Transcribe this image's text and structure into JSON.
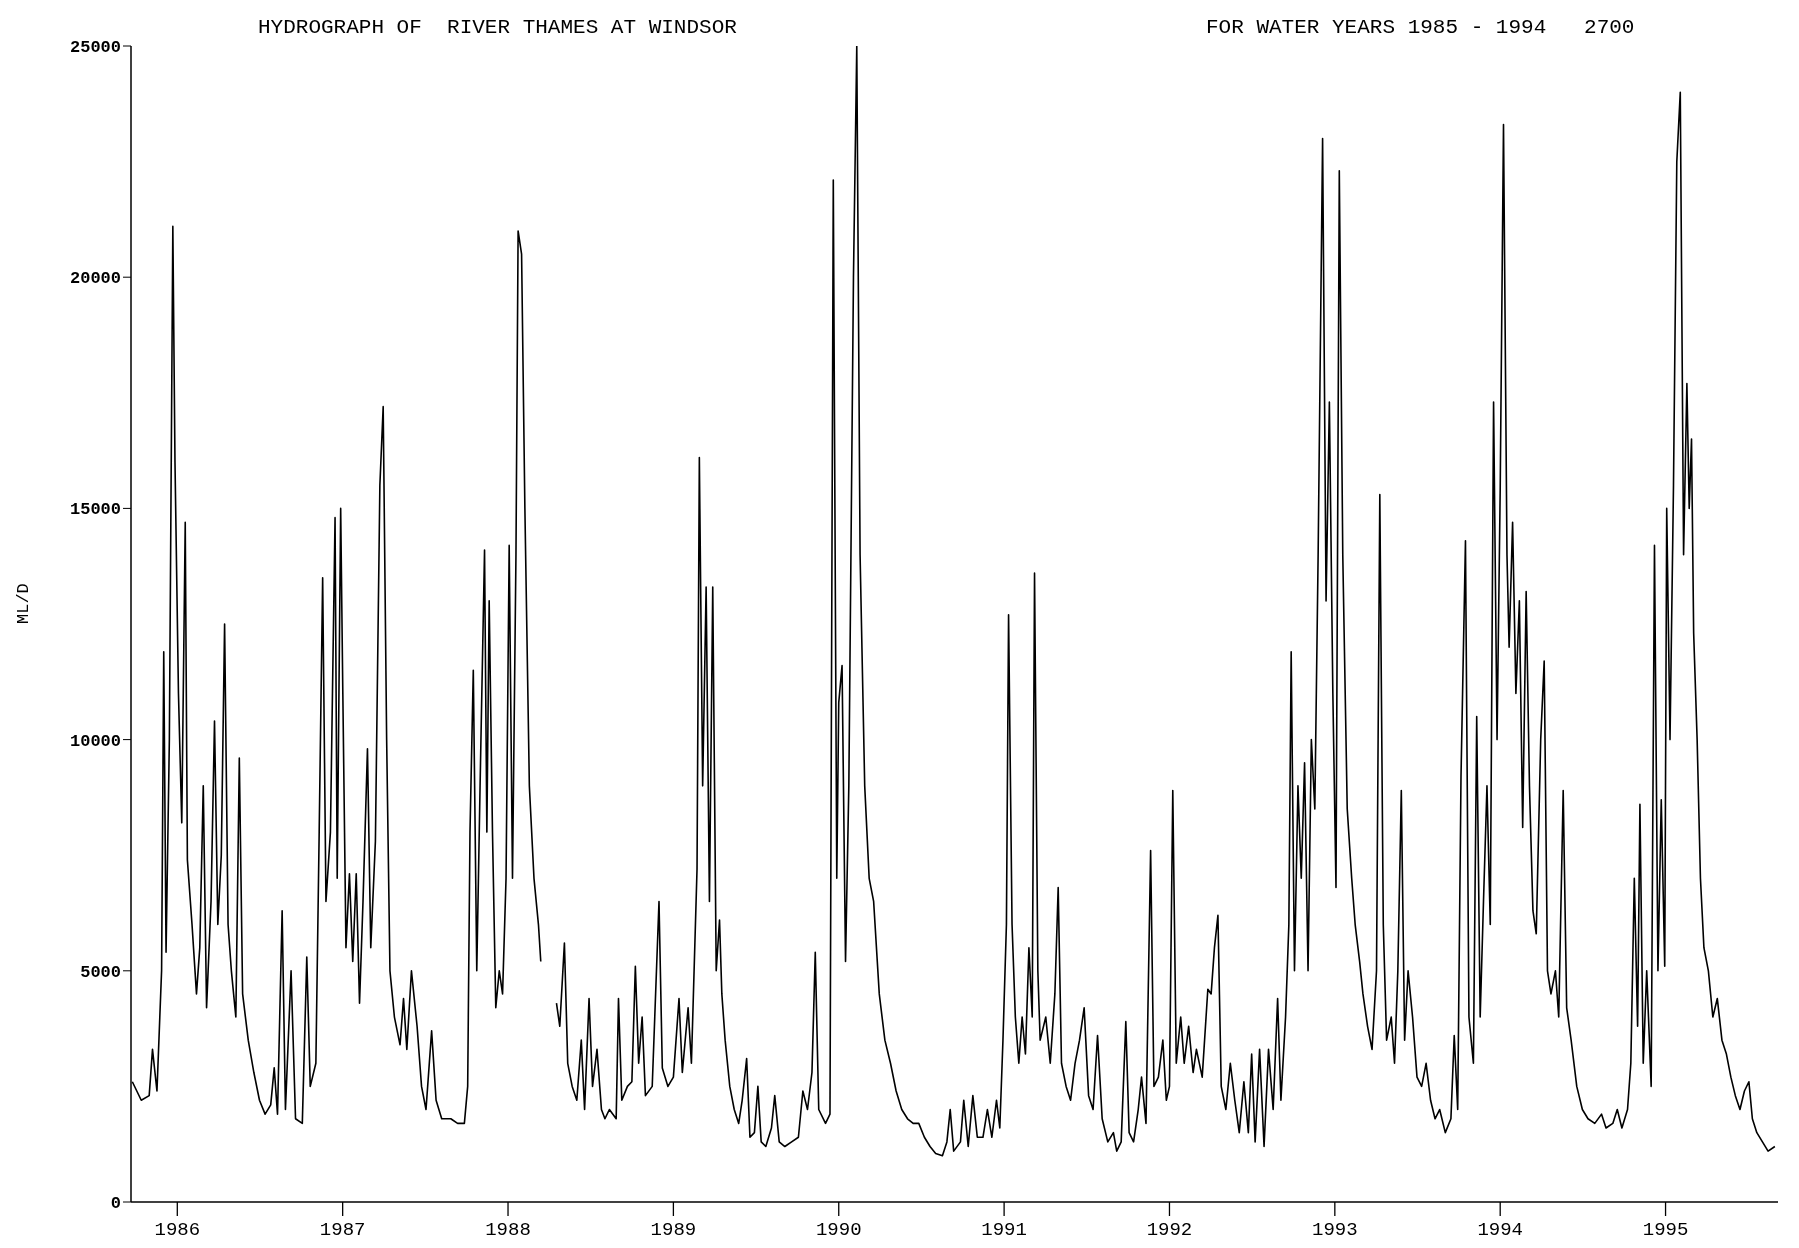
{
  "chart_data": {
    "type": "line",
    "title": "HYDROGRAPH OF  RIVER THAMES AT WINDSOR",
    "subtitle": "FOR WATER YEARS 1985 - 1994   2700",
    "ylabel": "ML/D",
    "color": "#000000",
    "marker": "none",
    "line_style": "solid",
    "grid": false,
    "legend": false,
    "xlim": [
      1985.72,
      1995.68
    ],
    "xticks": [
      1986,
      1987,
      1988,
      1989,
      1990,
      1991,
      1992,
      1993,
      1994,
      1995
    ],
    "ylim": [
      0,
      25000
    ],
    "yticks": [
      0,
      5000,
      10000,
      15000,
      20000,
      25000
    ],
    "x": [
      1985.728,
      1985.782,
      1985.83,
      1985.85,
      1985.877,
      1985.905,
      1985.918,
      1985.932,
      1985.952,
      1985.973,
      1985.986,
      1986.007,
      1986.027,
      1986.048,
      1986.061,
      1986.089,
      1986.116,
      1986.136,
      1986.157,
      1986.177,
      1986.204,
      1986.225,
      1986.245,
      1986.266,
      1986.286,
      1986.307,
      1986.327,
      1986.354,
      1986.375,
      1986.395,
      1986.429,
      1986.463,
      1986.497,
      1986.531,
      1986.565,
      1986.586,
      1986.606,
      1986.634,
      1986.654,
      1986.688,
      1986.715,
      1986.756,
      1986.783,
      1986.804,
      1986.838,
      1986.858,
      1986.879,
      1986.899,
      1986.926,
      1986.954,
      1986.967,
      1986.988,
      1987.001,
      1987.02,
      1987.041,
      1987.061,
      1987.082,
      1987.102,
      1987.123,
      1987.15,
      1987.17,
      1987.198,
      1987.225,
      1987.245,
      1987.266,
      1987.286,
      1987.313,
      1987.347,
      1987.368,
      1987.388,
      1987.416,
      1987.45,
      1987.477,
      1987.504,
      1987.538,
      1987.565,
      1987.599,
      1987.654,
      1987.695,
      1987.736,
      1987.756,
      1987.77,
      1987.79,
      1987.811,
      1987.831,
      1987.858,
      1987.872,
      1987.886,
      1987.906,
      1987.926,
      1987.947,
      1987.967,
      1987.988,
      1988.007,
      1988.027,
      1988.048,
      1988.061,
      1988.082,
      1988.102,
      1988.129,
      1988.157,
      1988.184,
      1988.198,
      1988.252,
      1988.293,
      1988.313,
      1988.341,
      1988.361,
      1988.388,
      1988.416,
      1988.443,
      1988.463,
      1988.49,
      1988.511,
      1988.538,
      1988.565,
      1988.586,
      1988.613,
      1988.654,
      1988.668,
      1988.688,
      1988.722,
      1988.749,
      1988.77,
      1988.79,
      1988.811,
      1988.831,
      1988.872,
      1988.913,
      1988.933,
      1988.967,
      1989.0,
      1989.034,
      1989.054,
      1989.089,
      1989.109,
      1989.143,
      1989.157,
      1989.177,
      1989.198,
      1989.218,
      1989.238,
      1989.259,
      1989.279,
      1989.293,
      1989.313,
      1989.341,
      1989.368,
      1989.395,
      1989.416,
      1989.443,
      1989.463,
      1989.49,
      1989.511,
      1989.531,
      1989.559,
      1989.593,
      1989.613,
      1989.64,
      1989.674,
      1989.715,
      1989.756,
      1989.783,
      1989.811,
      1989.838,
      1989.858,
      1989.879,
      1989.92,
      1989.947,
      1989.967,
      1989.988,
      1990.0,
      1990.02,
      1990.041,
      1990.061,
      1990.089,
      1990.109,
      1990.129,
      1990.157,
      1990.184,
      1990.211,
      1990.245,
      1990.279,
      1990.313,
      1990.347,
      1990.381,
      1990.416,
      1990.45,
      1990.484,
      1990.518,
      1990.552,
      1990.586,
      1990.627,
      1990.654,
      1990.674,
      1990.695,
      1990.736,
      1990.756,
      1990.783,
      1990.811,
      1990.838,
      1990.872,
      1990.899,
      1990.926,
      1990.954,
      1990.974,
      1990.993,
      1991.014,
      1991.027,
      1991.048,
      1991.068,
      1991.089,
      1991.109,
      1991.129,
      1991.15,
      1991.17,
      1991.184,
      1991.204,
      1991.218,
      1991.252,
      1991.279,
      1991.307,
      1991.327,
      1991.347,
      1991.375,
      1991.402,
      1991.429,
      1991.456,
      1991.484,
      1991.511,
      1991.538,
      1991.565,
      1991.593,
      1991.627,
      1991.661,
      1991.681,
      1991.708,
      1991.736,
      1991.756,
      1991.783,
      1991.811,
      1991.831,
      1991.858,
      1991.886,
      1991.906,
      1991.933,
      1991.96,
      1991.981,
      1992.0,
      1992.02,
      1992.041,
      1992.068,
      1992.089,
      1992.116,
      1992.143,
      1992.163,
      1992.198,
      1992.232,
      1992.252,
      1992.272,
      1992.293,
      1992.313,
      1992.341,
      1992.368,
      1992.395,
      1992.422,
      1992.45,
      1992.477,
      1992.497,
      1992.518,
      1992.545,
      1992.572,
      1992.599,
      1992.627,
      1992.654,
      1992.674,
      1992.702,
      1992.722,
      1992.736,
      1992.756,
      1992.777,
      1992.797,
      1992.817,
      1992.838,
      1992.858,
      1992.879,
      1992.899,
      1992.926,
      1992.947,
      1992.967,
      1992.988,
      1993.007,
      1993.027,
      1993.048,
      1993.075,
      1993.102,
      1993.123,
      1993.15,
      1993.17,
      1993.198,
      1993.225,
      1993.252,
      1993.272,
      1993.293,
      1993.313,
      1993.341,
      1993.361,
      1993.381,
      1993.402,
      1993.422,
      1993.443,
      1993.47,
      1993.497,
      1993.525,
      1993.552,
      1993.579,
      1993.606,
      1993.634,
      1993.668,
      1993.702,
      1993.722,
      1993.743,
      1993.763,
      1993.79,
      1993.811,
      1993.838,
      1993.858,
      1993.879,
      1993.899,
      1993.92,
      1993.94,
      1993.96,
      1993.981,
      1994.0,
      1994.02,
      1994.041,
      1994.054,
      1994.075,
      1994.095,
      1994.116,
      1994.136,
      1994.157,
      1994.177,
      1994.198,
      1994.218,
      1994.245,
      1994.266,
      1994.286,
      1994.307,
      1994.334,
      1994.354,
      1994.381,
      1994.402,
      1994.429,
      1994.463,
      1994.497,
      1994.531,
      1994.572,
      1994.613,
      1994.64,
      1994.681,
      1994.708,
      1994.736,
      1994.77,
      1994.79,
      1994.811,
      1994.831,
      1994.845,
      1994.865,
      1994.886,
      1994.913,
      1994.933,
      1994.954,
      1994.974,
      1994.995,
      1995.007,
      1995.027,
      1995.048,
      1995.068,
      1995.089,
      1995.109,
      1995.129,
      1995.143,
      1995.157,
      1995.17,
      1995.191,
      1995.211,
      1995.232,
      1995.259,
      1995.286,
      1995.313,
      1995.341,
      1995.368,
      1995.395,
      1995.422,
      1995.45,
      1995.477,
      1995.504,
      1995.525,
      1995.552,
      1995.586,
      1995.62,
      1995.661
    ],
    "values": [
      2600,
      2200,
      2300,
      3300,
      2400,
      5000,
      11900,
      5400,
      10000,
      21100,
      16000,
      11000,
      8200,
      14700,
      7400,
      6000,
      4500,
      5500,
      9000,
      4200,
      6500,
      10400,
      6000,
      7500,
      12500,
      6000,
      5000,
      4000,
      9600,
      4500,
      3500,
      2800,
      2200,
      1900,
      2100,
      2900,
      1900,
      6300,
      2000,
      5000,
      1800,
      1700,
      5300,
      2500,
      3000,
      8000,
      13500,
      6500,
      8000,
      14800,
      7000,
      15000,
      11000,
      5500,
      7100,
      5200,
      7100,
      4300,
      6500,
      9800,
      5500,
      7800,
      15500,
      17200,
      10000,
      5000,
      4000,
      3400,
      4400,
      3300,
      5000,
      3800,
      2500,
      2000,
      3700,
      2200,
      1800,
      1800,
      1700,
      1700,
      2500,
      8000,
      11500,
      5000,
      9000,
      14100,
      8000,
      13000,
      8000,
      4200,
      5000,
      4500,
      7000,
      14200,
      7000,
      14000,
      21000,
      20500,
      15000,
      9000,
      7000,
      6000,
      5200,
      null,
      4300,
      3800,
      5600,
      3000,
      2500,
      2200,
      3500,
      2000,
      4400,
      2500,
      3300,
      2000,
      1800,
      2000,
      1800,
      4400,
      2200,
      2500,
      2600,
      5100,
      3000,
      4000,
      2300,
      2500,
      6500,
      2900,
      2500,
      2700,
      4400,
      2800,
      4200,
      3000,
      7200,
      16100,
      9000,
      13300,
      6500,
      13300,
      5000,
      6100,
      4500,
      3500,
      2500,
      2000,
      1700,
      2200,
      3100,
      1400,
      1500,
      2500,
      1300,
      1200,
      1600,
      2300,
      1300,
      1200,
      1300,
      1400,
      2400,
      2000,
      2800,
      5400,
      2000,
      1700,
      1900,
      22100,
      7000,
      10800,
      11600,
      5200,
      9000,
      20000,
      25000,
      14000,
      9000,
      7000,
      6500,
      4500,
      3500,
      3000,
      2400,
      2000,
      1800,
      1700,
      1700,
      1400,
      1200,
      1050,
      1000,
      1300,
      2000,
      1100,
      1300,
      2200,
      1200,
      2300,
      1400,
      1400,
      2000,
      1400,
      2200,
      1600,
      3500,
      6000,
      12700,
      6000,
      4000,
      3000,
      4000,
      3200,
      5500,
      4000,
      13600,
      5000,
      3500,
      4000,
      3000,
      4500,
      6800,
      3000,
      2500,
      2200,
      3000,
      3500,
      4200,
      2300,
      2000,
      3600,
      1800,
      1300,
      1500,
      1100,
      1300,
      3900,
      1500,
      1300,
      2000,
      2700,
      1700,
      7600,
      2500,
      2700,
      3500,
      2200,
      2500,
      8900,
      3000,
      4000,
      3000,
      3800,
      2800,
      3300,
      2700,
      4600,
      4500,
      5500,
      6200,
      2500,
      2000,
      3000,
      2200,
      1500,
      2600,
      1500,
      3200,
      1300,
      3300,
      1200,
      3300,
      2000,
      4400,
      2200,
      4000,
      6000,
      11900,
      5000,
      9000,
      7000,
      9500,
      5000,
      10000,
      8500,
      14000,
      23000,
      13000,
      17300,
      11000,
      6800,
      22300,
      14000,
      8500,
      7000,
      6000,
      5200,
      4500,
      3800,
      3300,
      5000,
      15300,
      6000,
      3500,
      4000,
      3000,
      5000,
      8900,
      3500,
      5000,
      4000,
      2700,
      2500,
      3000,
      2200,
      1800,
      2000,
      1500,
      1800,
      3600,
      2000,
      9200,
      14300,
      4000,
      3000,
      10500,
      4000,
      6500,
      9000,
      6000,
      17300,
      10000,
      15400,
      23300,
      14000,
      12000,
      14700,
      11000,
      13000,
      8100,
      13200,
      9000,
      6300,
      5800,
      10000,
      11700,
      5000,
      4500,
      5000,
      4000,
      8900,
      4200,
      3500,
      2500,
      2000,
      1800,
      1700,
      1900,
      1600,
      1700,
      2000,
      1600,
      2000,
      3000,
      7000,
      3800,
      8600,
      3000,
      5000,
      2500,
      14200,
      5000,
      8700,
      5100,
      15000,
      10000,
      15500,
      22500,
      24000,
      14000,
      17700,
      15000,
      16500,
      12300,
      10000,
      7000,
      5500,
      5000,
      4000,
      4400,
      3500,
      3200,
      2700,
      2300,
      2000,
      2400,
      2600,
      1800,
      1500,
      1300,
      1100,
      1200
    ]
  }
}
